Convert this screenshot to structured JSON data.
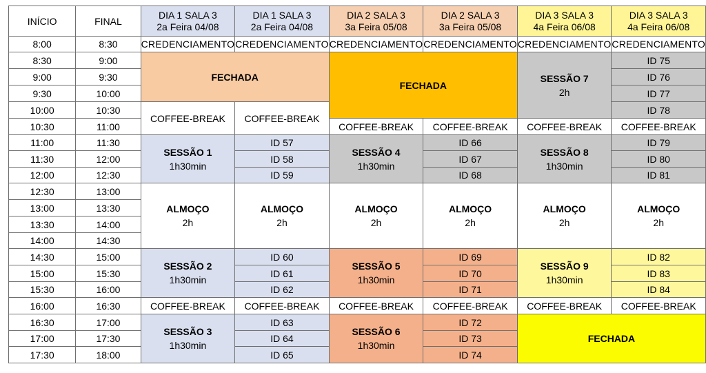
{
  "header": {
    "inicio": "INÍCIO",
    "final": "FINAL",
    "days": [
      {
        "l1": "DIA 1 SALA 3",
        "l2": "2a Feira  04/08"
      },
      {
        "l1": "DIA 1 SALA 3",
        "l2": "2a Feira  04/08"
      },
      {
        "l1": "DIA 2 SALA 3",
        "l2": "3a Feira  05/08"
      },
      {
        "l1": "DIA 2 SALA 3",
        "l2": "3a Feira  05/08"
      },
      {
        "l1": "DIA 3 SALA 3",
        "l2": "4a Feira  06/08"
      },
      {
        "l1": "DIA 3 SALA 3",
        "l2": "4a Feira  06/08"
      }
    ]
  },
  "times": [
    [
      "8:00",
      "8:30"
    ],
    [
      "8:30",
      "9:00"
    ],
    [
      "9:00",
      "9:30"
    ],
    [
      "9:30",
      "10:00"
    ],
    [
      "10:00",
      "10:30"
    ],
    [
      "10:30",
      "11:00"
    ],
    [
      "11:00",
      "11:30"
    ],
    [
      "11:30",
      "12:00"
    ],
    [
      "12:00",
      "12:30"
    ],
    [
      "12:30",
      "13:00"
    ],
    [
      "13:00",
      "13:30"
    ],
    [
      "13:30",
      "14:00"
    ],
    [
      "14:00",
      "14:30"
    ],
    [
      "14:30",
      "15:00"
    ],
    [
      "15:00",
      "15:30"
    ],
    [
      "15:30",
      "16:00"
    ],
    [
      "16:00",
      "16:30"
    ],
    [
      "16:30",
      "17:00"
    ],
    [
      "17:00",
      "17:30"
    ],
    [
      "17:30",
      "18:00"
    ]
  ],
  "labels": {
    "credenciamento": "CREDENCIAMENTO",
    "fechada": "FECHADA",
    "coffee": "COFFEE-BREAK",
    "almoco": "ALMOÇO",
    "almoco_dur": "2h",
    "sess_dur": "1h30min",
    "s7_dur": "2h"
  },
  "sessions": {
    "s1": "SESSÃO 1",
    "s2": "SESSÃO 2",
    "s3": "SESSÃO 3",
    "s4": "SESSÃO 4",
    "s5": "SESSÃO 5",
    "s6": "SESSÃO 6",
    "s7": "SESSÃO 7",
    "s8": "SESSÃO 8",
    "s9": "SESSÃO 9"
  },
  "ids": {
    "d3_morning": [
      "ID 75",
      "ID 76",
      "ID 77",
      "ID 78"
    ],
    "d1_a": [
      "ID 57",
      "ID 58",
      "ID 59"
    ],
    "d2_a": [
      "ID 66",
      "ID 67",
      "ID 68"
    ],
    "d3_a": [
      "ID 79",
      "ID 80",
      "ID 81"
    ],
    "d1_b": [
      "ID 60",
      "ID 61",
      "ID 62"
    ],
    "d2_b": [
      "ID 69",
      "ID 70",
      "ID 71"
    ],
    "d3_b": [
      "ID 82",
      "ID 83",
      "ID 84"
    ],
    "d1_c": [
      "ID 63",
      "ID 64",
      "ID 65"
    ],
    "d2_c": [
      "ID 72",
      "ID 73",
      "ID 74"
    ]
  }
}
